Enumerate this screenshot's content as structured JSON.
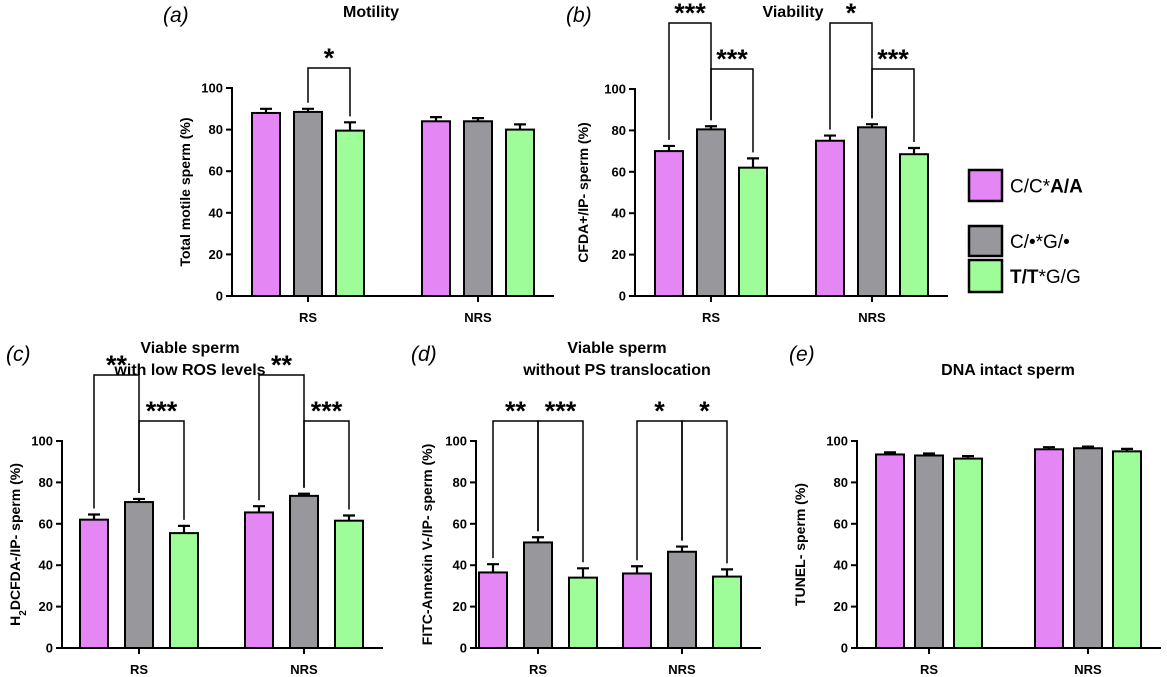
{
  "legend": {
    "entries": [
      {
        "parts": [
          {
            "t": "C/C*",
            "b": false
          },
          {
            "t": "A/A",
            "b": true
          }
        ],
        "color": "#e486f4"
      },
      {
        "parts": [
          {
            "t": "C/•*G/•",
            "b": false
          }
        ],
        "color": "#97979c"
      },
      {
        "parts": [
          {
            "t": "T/T",
            "b": true
          },
          {
            "t": "*G/G",
            "b": false
          }
        ],
        "color": "#9ffd99"
      }
    ]
  },
  "chart_data": [
    {
      "panel": "(a)",
      "type": "bar",
      "title": [
        "Motility"
      ],
      "ylabel": "Total motile sperm (%)",
      "ylim": [
        0,
        100
      ],
      "yticks": [
        0,
        20,
        40,
        60,
        80,
        100
      ],
      "categories": [
        "RS",
        "NRS"
      ],
      "series": [
        {
          "name": "C/C*A/A",
          "color": "#e486f4",
          "values": [
            88,
            84
          ],
          "errors": [
            2,
            2
          ]
        },
        {
          "name": "C/•*G/•",
          "color": "#97979c",
          "values": [
            88.5,
            84
          ],
          "errors": [
            1.5,
            1.5
          ]
        },
        {
          "name": "T/T*G/G",
          "color": "#9ffd99",
          "values": [
            79.5,
            80
          ],
          "errors": [
            4,
            2.5
          ]
        }
      ],
      "significance": [
        {
          "category": 0,
          "from": 1,
          "to": 2,
          "label": "*",
          "level": 1
        }
      ]
    },
    {
      "panel": "(b)",
      "type": "bar",
      "title": [
        "Viability"
      ],
      "ylabel": "CFDA+/IP-  sperm (%)",
      "ylim": [
        0,
        100
      ],
      "yticks": [
        0,
        20,
        40,
        60,
        80,
        100
      ],
      "categories": [
        "RS",
        "NRS"
      ],
      "series": [
        {
          "name": "C/C*A/A",
          "color": "#e486f4",
          "values": [
            70,
            75
          ],
          "errors": [
            2.5,
            2.5
          ]
        },
        {
          "name": "C/•*G/•",
          "color": "#97979c",
          "values": [
            80.5,
            81.5
          ],
          "errors": [
            1.5,
            1.5
          ]
        },
        {
          "name": "T/T*G/G",
          "color": "#9ffd99",
          "values": [
            62,
            68.5
          ],
          "errors": [
            4.5,
            3
          ]
        }
      ],
      "significance": [
        {
          "category": 0,
          "from": 0,
          "to": 1,
          "label": "***",
          "level": 2
        },
        {
          "category": 0,
          "from": 1,
          "to": 2,
          "label": "***",
          "level": 1
        },
        {
          "category": 1,
          "from": 0,
          "to": 1,
          "label": "*",
          "level": 2
        },
        {
          "category": 1,
          "from": 1,
          "to": 2,
          "label": "***",
          "level": 1
        }
      ]
    },
    {
      "panel": "(c)",
      "type": "bar",
      "title": [
        "Viable sperm",
        "with low ROS levels"
      ],
      "ylabel": "H₂DCFDA-/IP-  sperm (%)",
      "ylim": [
        0,
        100
      ],
      "yticks": [
        0,
        20,
        40,
        60,
        80,
        100
      ],
      "categories": [
        "RS",
        "NRS"
      ],
      "series": [
        {
          "name": "C/C*A/A",
          "color": "#e486f4",
          "values": [
            62,
            65.5
          ],
          "errors": [
            2.5,
            3
          ]
        },
        {
          "name": "C/•*G/•",
          "color": "#97979c",
          "values": [
            70.5,
            73.5
          ],
          "errors": [
            1.5,
            1
          ]
        },
        {
          "name": "T/T*G/G",
          "color": "#9ffd99",
          "values": [
            55.5,
            61.5
          ],
          "errors": [
            3.5,
            2.5
          ]
        }
      ],
      "significance": [
        {
          "category": 0,
          "from": 0,
          "to": 1,
          "label": "**",
          "level": 2
        },
        {
          "category": 0,
          "from": 1,
          "to": 2,
          "label": "***",
          "level": 1
        },
        {
          "category": 1,
          "from": 0,
          "to": 1,
          "label": "**",
          "level": 2
        },
        {
          "category": 1,
          "from": 1,
          "to": 2,
          "label": "***",
          "level": 1
        }
      ]
    },
    {
      "panel": "(d)",
      "type": "bar",
      "title": [
        "Viable sperm",
        "without PS translocation"
      ],
      "ylabel": "FITC-Annexin V-/IP- sperm (%)",
      "ylim": [
        0,
        100
      ],
      "yticks": [
        0,
        20,
        40,
        60,
        80,
        100
      ],
      "categories": [
        "RS",
        "NRS"
      ],
      "series": [
        {
          "name": "C/C*A/A",
          "color": "#e486f4",
          "values": [
            36.5,
            36
          ],
          "errors": [
            4,
            3.5
          ]
        },
        {
          "name": "C/•*G/•",
          "color": "#97979c",
          "values": [
            51,
            46.5
          ],
          "errors": [
            2.5,
            2.5
          ]
        },
        {
          "name": "T/T*G/G",
          "color": "#9ffd99",
          "values": [
            34,
            34.5
          ],
          "errors": [
            4.5,
            3.5
          ]
        }
      ],
      "significance": [
        {
          "category": 0,
          "from": 0,
          "to": 1,
          "label": "**",
          "level": 1
        },
        {
          "category": 0,
          "from": 1,
          "to": 2,
          "label": "***",
          "level": 1
        },
        {
          "category": 1,
          "from": 0,
          "to": 1,
          "label": "*",
          "level": 1
        },
        {
          "category": 1,
          "from": 1,
          "to": 2,
          "label": "*",
          "level": 1
        }
      ]
    },
    {
      "panel": "(e)",
      "type": "bar",
      "title": [
        "DNA intact sperm"
      ],
      "ylabel": "TUNEL-   sperm (%)",
      "ylim": [
        0,
        100
      ],
      "yticks": [
        0,
        20,
        40,
        60,
        80,
        100
      ],
      "categories": [
        "RS",
        "NRS"
      ],
      "series": [
        {
          "name": "C/C*A/A",
          "color": "#e486f4",
          "values": [
            93.5,
            96
          ],
          "errors": [
            1,
            1
          ]
        },
        {
          "name": "C/•*G/•",
          "color": "#97979c",
          "values": [
            93,
            96.5
          ],
          "errors": [
            1,
            0.8
          ]
        },
        {
          "name": "T/T*G/G",
          "color": "#9ffd99",
          "values": [
            91.5,
            95
          ],
          "errors": [
            1.2,
            1.2
          ]
        }
      ],
      "significance": []
    }
  ]
}
